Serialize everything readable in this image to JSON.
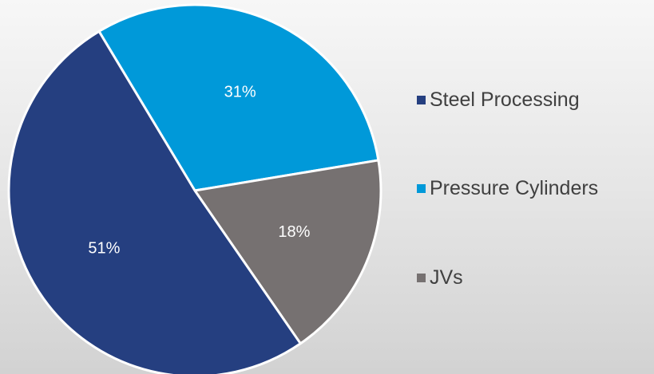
{
  "chart_data": {
    "type": "pie",
    "title": "",
    "start_angle_deg": -121,
    "slices": [
      {
        "label": "Pressure Cylinders",
        "value": 31,
        "percent_label": "31%",
        "color": "#0099d9"
      },
      {
        "label": "JVs",
        "value": 18,
        "percent_label": "18%",
        "color": "#767171"
      },
      {
        "label": "Steel Processing",
        "value": 51,
        "percent_label": "51%",
        "color": "#253f80"
      }
    ],
    "legend": {
      "position": "right",
      "items": [
        {
          "label": "Steel Processing",
          "color": "#253f80"
        },
        {
          "label": "Pressure Cylinders",
          "color": "#0099d9"
        },
        {
          "label": "JVs",
          "color": "#767171"
        }
      ]
    },
    "slice_label_color": "#ffffff",
    "slice_border_color": "#ffffff"
  }
}
